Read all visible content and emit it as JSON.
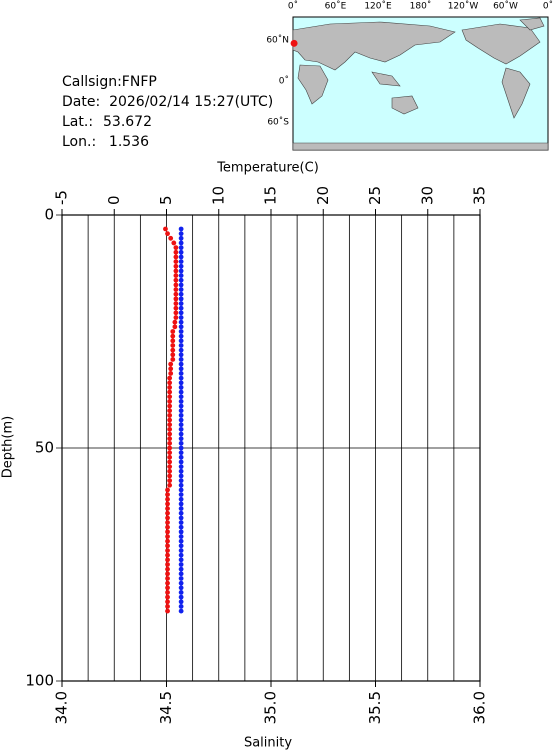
{
  "header": {
    "callsign": "Callsign:FNFP",
    "date": "Date:  2026/02/14 15:27(UTC)",
    "lat_label": "Lat.:",
    "lat": 53.672,
    "lon_label": "Lon.:",
    "lon": 1.536
  },
  "map": {
    "lon_labels": [
      "0˚",
      "60˚E",
      "120˚E",
      "180˚",
      "120˚W",
      "60˚W",
      "0˚"
    ],
    "lat_labels": [
      "60˚N",
      "0˚",
      "60˚S"
    ]
  },
  "chart_data": {
    "type": "scatter",
    "xlabel": "Temperature(C)",
    "x2label": "Salinity",
    "ylabel": "Depth(m)",
    "xlim": [
      -5,
      35
    ],
    "xticks": [
      -5,
      0,
      5,
      10,
      15,
      20,
      25,
      30,
      35
    ],
    "xminorticks": [
      -2.5,
      2.5,
      7.5,
      12.5,
      17.5,
      22.5,
      27.5,
      32.5
    ],
    "x2lim": [
      34,
      36
    ],
    "x2ticks": [
      {
        "value": 34,
        "label": "34.0"
      },
      34.5,
      {
        "value": 35,
        "label": "35.0"
      },
      35.5,
      {
        "value": 36,
        "label": "36.0"
      }
    ],
    "ylim": [
      0,
      100
    ],
    "yticks": [
      0,
      50,
      100
    ],
    "depth": [
      3,
      4,
      5,
      6,
      7,
      8,
      9,
      10,
      11,
      12,
      13,
      14,
      15,
      16,
      17,
      18,
      19,
      20,
      21,
      22,
      23,
      24,
      25,
      26,
      27,
      28,
      29,
      30,
      31,
      32,
      33,
      34,
      35,
      36,
      37,
      38,
      39,
      40,
      41,
      42,
      43,
      44,
      45,
      46,
      47,
      48,
      49,
      50,
      51,
      52,
      53,
      54,
      55,
      56,
      57,
      58,
      59,
      60,
      61,
      62,
      63,
      64,
      65,
      66,
      67,
      68,
      69,
      70,
      71,
      72,
      73,
      74,
      75,
      76,
      77,
      78,
      79,
      80,
      81,
      82,
      83,
      84,
      85
    ],
    "series": [
      {
        "color": "#ee1111",
        "axis": "x",
        "values": [
          4.9,
          5.1,
          5.4,
          5.7,
          5.9,
          5.9,
          5.9,
          5.9,
          5.9,
          5.9,
          5.9,
          5.9,
          5.9,
          5.9,
          5.9,
          5.9,
          5.9,
          5.9,
          5.9,
          5.9,
          5.8,
          5.8,
          5.6,
          5.6,
          5.6,
          5.6,
          5.6,
          5.6,
          5.6,
          5.4,
          5.4,
          5.4,
          5.3,
          5.3,
          5.3,
          5.3,
          5.3,
          5.3,
          5.3,
          5.3,
          5.3,
          5.3,
          5.3,
          5.3,
          5.3,
          5.3,
          5.3,
          5.3,
          5.3,
          5.3,
          5.3,
          5.3,
          5.3,
          5.3,
          5.3,
          5.3,
          5.1,
          5.1,
          5.1,
          5.1,
          5.1,
          5.1,
          5.1,
          5.1,
          5.1,
          5.1,
          5.1,
          5.1,
          5.1,
          5.1,
          5.1,
          5.1,
          5.1,
          5.1,
          5.1,
          5.1,
          5.1,
          5.1,
          5.1,
          5.1,
          5.1,
          5.1,
          5.1
        ]
      },
      {
        "color": "#1122ee",
        "axis": "x2",
        "values": [
          34.57,
          34.57,
          34.57,
          34.57,
          34.57,
          34.57,
          34.57,
          34.57,
          34.57,
          34.57,
          34.57,
          34.57,
          34.57,
          34.57,
          34.57,
          34.57,
          34.57,
          34.57,
          34.57,
          34.57,
          34.57,
          34.57,
          34.57,
          34.57,
          34.57,
          34.57,
          34.57,
          34.57,
          34.57,
          34.57,
          34.57,
          34.57,
          34.57,
          34.57,
          34.57,
          34.57,
          34.57,
          34.57,
          34.57,
          34.57,
          34.57,
          34.57,
          34.57,
          34.57,
          34.57,
          34.57,
          34.57,
          34.57,
          34.57,
          34.57,
          34.57,
          34.57,
          34.57,
          34.57,
          34.57,
          34.57,
          34.57,
          34.57,
          34.57,
          34.57,
          34.57,
          34.57,
          34.57,
          34.57,
          34.57,
          34.57,
          34.57,
          34.57,
          34.57,
          34.57,
          34.57,
          34.57,
          34.57,
          34.57,
          34.57,
          34.57,
          34.57,
          34.57,
          34.57,
          34.57,
          34.57,
          34.57,
          34.57
        ]
      }
    ]
  }
}
